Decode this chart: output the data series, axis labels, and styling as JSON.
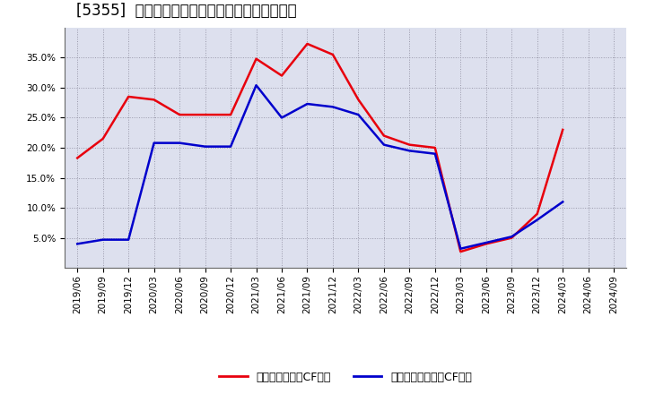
{
  "title": "[5355]  有利子負債キャッシュフロー比率の推移",
  "red_label": "有利子負債営業CF比率",
  "blue_label": "有利子負債フリーCF比率",
  "dates": [
    "2019/06",
    "2019/09",
    "2019/12",
    "2020/03",
    "2020/06",
    "2020/09",
    "2020/12",
    "2021/03",
    "2021/06",
    "2021/09",
    "2021/12",
    "2022/03",
    "2022/06",
    "2022/09",
    "2022/12",
    "2023/03",
    "2023/06",
    "2023/09",
    "2023/12",
    "2024/03",
    "2024/06",
    "2024/09"
  ],
  "red_values": [
    0.183,
    0.215,
    0.285,
    0.28,
    0.255,
    0.255,
    0.255,
    0.348,
    0.32,
    0.373,
    0.355,
    0.28,
    0.22,
    0.205,
    0.2,
    0.027,
    0.04,
    0.05,
    0.09,
    0.23,
    null,
    null
  ],
  "blue_values": [
    0.04,
    0.047,
    0.047,
    0.208,
    0.208,
    0.202,
    0.202,
    0.304,
    0.25,
    0.273,
    0.268,
    0.255,
    0.205,
    0.195,
    0.19,
    0.032,
    0.042,
    0.052,
    0.08,
    0.11,
    null,
    null
  ],
  "ylim": [
    0.0,
    0.4
  ],
  "yticks": [
    0.05,
    0.1,
    0.15,
    0.2,
    0.25,
    0.3,
    0.35
  ],
  "red_color": "#e8000d",
  "blue_color": "#0000cc",
  "grid_color": "#9999aa",
  "bg_color": "#ffffff",
  "plot_bg_color": "#dde0ee",
  "title_fontsize": 12,
  "legend_fontsize": 9,
  "tick_fontsize": 7.5
}
